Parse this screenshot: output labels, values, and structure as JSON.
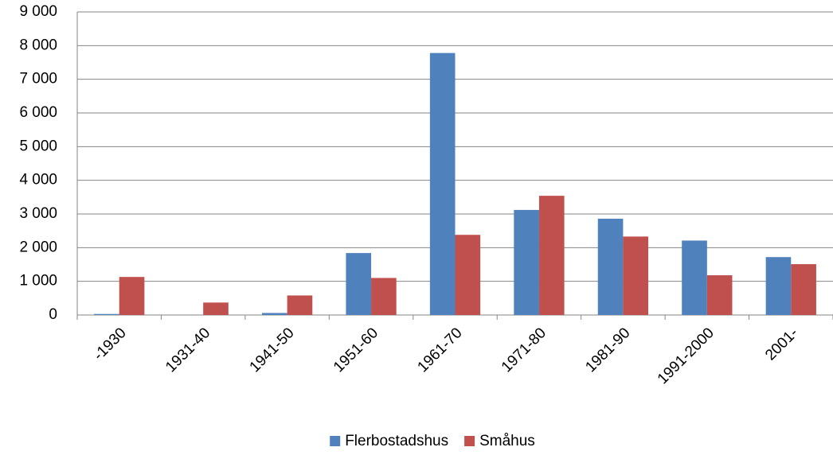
{
  "chart_data": {
    "type": "bar",
    "categories": [
      "-1930",
      "1931-40",
      "1941-50",
      "1951-60",
      "1961-70",
      "1971-80",
      "1981-90",
      "1991-2000",
      "2001-"
    ],
    "series": [
      {
        "name": "Flerbostadshus",
        "color": "#4f81bd",
        "values": [
          30,
          0,
          60,
          1840,
          7780,
          3120,
          2860,
          2210,
          1720
        ]
      },
      {
        "name": "Småhus",
        "color": "#c0504d",
        "values": [
          1130,
          370,
          580,
          1100,
          2380,
          3540,
          2330,
          1180,
          1510
        ]
      }
    ],
    "ylim": [
      0,
      9000
    ],
    "yticks": [
      0,
      {
        "value": 1000,
        "label": "1 000"
      },
      {
        "value": 2000,
        "label": "2 000"
      },
      {
        "value": 3000,
        "label": "3 000"
      },
      {
        "value": 4000,
        "label": "4 000"
      },
      {
        "value": 5000,
        "label": "5 000"
      },
      {
        "value": 6000,
        "label": "6 000"
      },
      {
        "value": 7000,
        "label": "7 000"
      },
      {
        "value": 8000,
        "label": "8 000"
      },
      {
        "value": 9000,
        "label": "9 000"
      }
    ],
    "grid": true,
    "legend": "bottom"
  }
}
